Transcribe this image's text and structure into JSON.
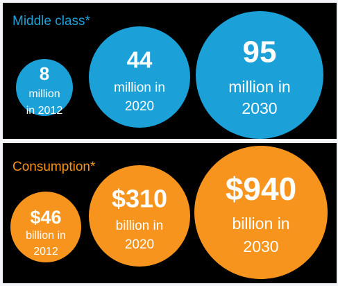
{
  "colors": {
    "middle_class": "#1ba1d8",
    "consumption": "#f7941d",
    "panel_bg": "#000000",
    "text": "#ffffff"
  },
  "middle_class": {
    "title": "Middle class*",
    "circles": [
      {
        "number": "8",
        "line1": "million",
        "line2": "in 2012"
      },
      {
        "number": "44",
        "line1": "million in",
        "line2": "2020"
      },
      {
        "number": "95",
        "line1": "million in",
        "line2": "2030"
      }
    ]
  },
  "consumption": {
    "title": "Consumption*",
    "circles": [
      {
        "number": "$46",
        "line1": "billion in",
        "line2": "2012"
      },
      {
        "number": "$310",
        "line1": "billion in",
        "line2": "2020"
      },
      {
        "number": "$940",
        "line1": "billion in",
        "line2": "2030"
      }
    ]
  },
  "chart_data": [
    {
      "type": "bubble",
      "title": "Middle class*",
      "categories": [
        "2012",
        "2020",
        "2030"
      ],
      "values": [
        8,
        44,
        95
      ],
      "unit": "million"
    },
    {
      "type": "bubble",
      "title": "Consumption*",
      "categories": [
        "2012",
        "2020",
        "2030"
      ],
      "values": [
        46,
        310,
        940
      ],
      "unit": "billion $"
    }
  ]
}
